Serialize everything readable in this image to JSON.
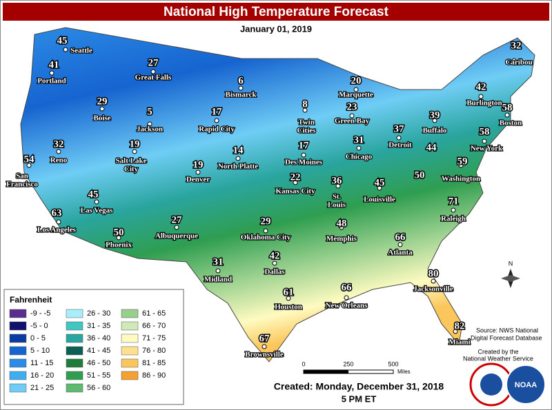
{
  "title": "National High Temperature Forecast",
  "date": "January 01, 2019",
  "points": [
    {
      "name": "Seattle",
      "value": 45
    },
    {
      "name": "Portland",
      "value": 41
    },
    {
      "name": "Great Falls",
      "value": 27
    },
    {
      "name": "Bismarck",
      "value": 6
    },
    {
      "name": "Marquette",
      "value": 20
    },
    {
      "name": "Caribou",
      "value": 32
    },
    {
      "name": "Burlington",
      "value": 42
    },
    {
      "name": "Boise",
      "value": 29
    },
    {
      "name": "Jackson",
      "value": 5
    },
    {
      "name": "Rapid City",
      "value": 17
    },
    {
      "name": [
        "Twin",
        "Cities"
      ],
      "value": 8
    },
    {
      "name": "Green Bay",
      "value": 23
    },
    {
      "name": "Buffalo",
      "value": 39
    },
    {
      "name": "Boston",
      "value": 58
    },
    {
      "name": "Detroit",
      "value": 37
    },
    {
      "name": "New York",
      "value": 58
    },
    {
      "name": "Reno",
      "value": 32
    },
    {
      "name": [
        "Salt Lake",
        "City"
      ],
      "value": 19
    },
    {
      "name": "Des Moines",
      "value": 17
    },
    {
      "name": "Chicago",
      "value": 31
    },
    {
      "name": [
        "San",
        "Francisco"
      ],
      "value": 54
    },
    {
      "name": "North Platte",
      "value": 14
    },
    {
      "name": "Denver",
      "value": 19
    },
    {
      "name": "Washington",
      "value": 59
    },
    {
      "name": "Kansas City",
      "value": 22
    },
    {
      "name": [
        "St.",
        "Louis"
      ],
      "value": 36
    },
    {
      "name": "Louisville",
      "value": 45
    },
    {
      "name": "Las Vegas",
      "value": 45
    },
    {
      "name": "Raleigh",
      "value": 71
    },
    {
      "name": "Albuquerque",
      "value": 27
    },
    {
      "name": "Oklahoma City",
      "value": 29
    },
    {
      "name": "Memphis",
      "value": 48
    },
    {
      "name": "Atlanta",
      "value": 66
    },
    {
      "name": "Los Angeles",
      "value": 63
    },
    {
      "name": "Phoenix",
      "value": 50
    },
    {
      "name": "Midland",
      "value": 31
    },
    {
      "name": "Dallas",
      "value": 42
    },
    {
      "name": "Jacksonville",
      "value": 80
    },
    {
      "name": "Houston",
      "value": 61
    },
    {
      "name": "New Orleans",
      "value": 66
    },
    {
      "name": "Miami",
      "value": 82
    },
    {
      "name": "Brownsville",
      "value": 67
    },
    {
      "value": 44
    },
    {
      "value": 50
    }
  ],
  "legend": {
    "title": "Fahrenheit",
    "entries": [
      {
        "label": "-9 - -5",
        "color": "#5b2d8e"
      },
      {
        "label": "-5 - 0",
        "color": "#12116e"
      },
      {
        "label": "0 - 5",
        "color": "#0b3b9f"
      },
      {
        "label": "5 - 10",
        "color": "#1664d0"
      },
      {
        "label": "11 - 15",
        "color": "#2c8be5"
      },
      {
        "label": "16 - 20",
        "color": "#3eaef0"
      },
      {
        "label": "21 - 25",
        "color": "#6fcdf5"
      },
      {
        "label": "26 - 30",
        "color": "#a8eefa"
      },
      {
        "label": "31 - 35",
        "color": "#3fc7c0"
      },
      {
        "label": "36 - 40",
        "color": "#2aa59f"
      },
      {
        "label": "41 - 45",
        "color": "#0b5f55"
      },
      {
        "label": "46 - 50",
        "color": "#1f7c3b"
      },
      {
        "label": "51 - 55",
        "color": "#2f9e50"
      },
      {
        "label": "56 - 60",
        "color": "#5dba6e"
      },
      {
        "label": "61 - 65",
        "color": "#97cf8d"
      },
      {
        "label": "66 - 70",
        "color": "#cfeab7"
      },
      {
        "label": "71 - 75",
        "color": "#fefbc1"
      },
      {
        "label": "76 - 80",
        "color": "#fde08d"
      },
      {
        "label": "81 - 85",
        "color": "#fbc65b"
      },
      {
        "label": "86 - 90",
        "color": "#f5a132"
      }
    ]
  },
  "source": [
    "Source: NWS National",
    "Digital Forecast Database"
  ],
  "credit": [
    "Created by the",
    "National Weather Service"
  ],
  "scale": {
    "ticks": [
      0,
      250,
      500
    ],
    "unit": "Miles"
  },
  "created": "Created: Monday, December 31, 2018",
  "time": "5 PM ET",
  "compass": "N",
  "logo": "NOAA"
}
